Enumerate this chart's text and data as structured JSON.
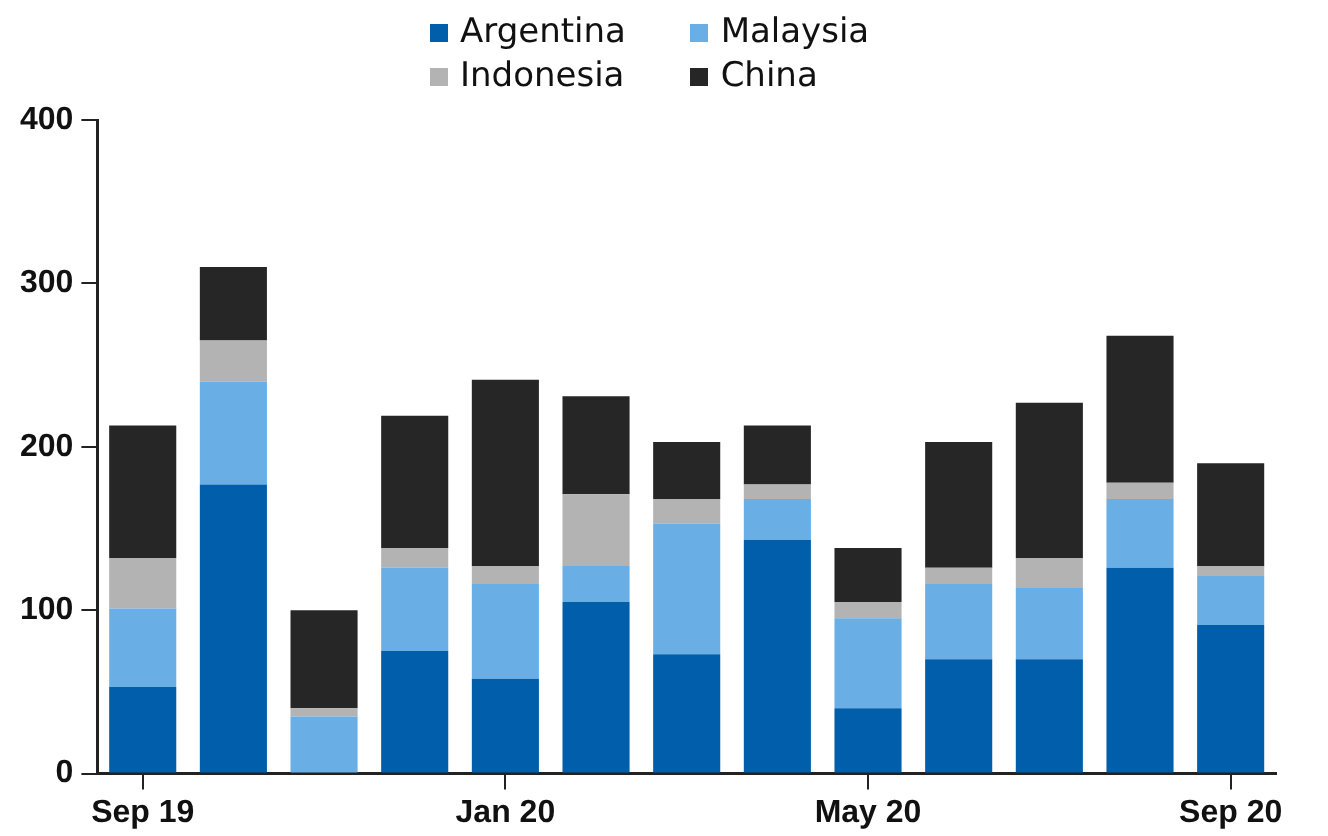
{
  "chart_data": {
    "type": "bar",
    "stacked": true,
    "legend": "top",
    "categories": [
      "Sep 19",
      null,
      null,
      null,
      "Jan 20",
      null,
      null,
      null,
      "May 20",
      null,
      null,
      null,
      "Sep 20"
    ],
    "series": [
      {
        "name": "Argentina",
        "color": "#005eaa",
        "values": [
          53,
          177,
          0,
          75,
          58,
          105,
          73,
          143,
          40,
          70,
          70,
          126,
          91
        ]
      },
      {
        "name": "Malaysia",
        "color": "#6aaee6",
        "values": [
          48,
          63,
          35,
          51,
          58,
          22,
          80,
          25,
          55,
          46,
          44,
          42,
          30
        ]
      },
      {
        "name": "Indonesia",
        "color": "#b3b3b3",
        "values": [
          31,
          25,
          5,
          12,
          11,
          44,
          15,
          9,
          10,
          10,
          18,
          10,
          6
        ]
      },
      {
        "name": "China",
        "color": "#262626",
        "values": [
          81,
          45,
          60,
          81,
          114,
          60,
          35,
          36,
          33,
          77,
          95,
          90,
          63
        ]
      }
    ],
    "ylim": [
      0,
      400
    ],
    "yticks": [
      0,
      100,
      200,
      300,
      400
    ],
    "grid": false
  }
}
